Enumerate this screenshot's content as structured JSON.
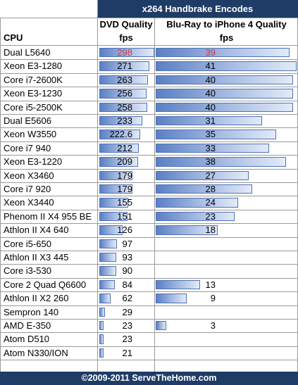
{
  "chart_data": {
    "type": "table",
    "title": "x264 Handbrake Encodes",
    "footer": "©2009-2011 ServeTheHome.com",
    "row_header": "CPU",
    "columns": [
      {
        "name": "DVD Quality",
        "unit": "fps",
        "max": 298
      },
      {
        "name": "Blu-Ray to iPhone 4 Quality",
        "unit": "fps",
        "max": 41
      }
    ],
    "categories": [
      "Dual L5640",
      "Xeon E3-1280",
      "Core i7-2600K",
      "Xeon E3-1230",
      "Core i5-2500K",
      "Dual E5606",
      "Xeon W3550",
      "Core i7 940",
      "Xeon E3-1220",
      "Xeon X3460",
      "Core i7 920",
      "Xeon X3440",
      "Phenom II X4 955 BE",
      "Athlon II X4 640",
      "Core i5-650",
      "Athlon II X3 445",
      "Core i3-530",
      "Core 2 Quad Q6600",
      "Athlon II X2 260",
      "Sempron 140",
      "AMD E-350",
      "Atom D510",
      "Atom N330/ION"
    ],
    "series": [
      {
        "name": "DVD Quality",
        "values": [
          298,
          271,
          263,
          256,
          258,
          233,
          222.6,
          212,
          209,
          179,
          179,
          155,
          151,
          126,
          97,
          93,
          90,
          84,
          62,
          29,
          23,
          23,
          21
        ]
      },
      {
        "name": "Blu-Ray to iPhone 4 Quality",
        "values": [
          39,
          41,
          40,
          40,
          40,
          31,
          35,
          33,
          38,
          27,
          28,
          24,
          23,
          18,
          null,
          null,
          null,
          13,
          9,
          null,
          3,
          null,
          null
        ]
      }
    ],
    "highlight_row": 0,
    "colors": {
      "header_bg": "#1f3c66",
      "bar": "#7f9fd6",
      "highlight_text": "#e0303a"
    }
  }
}
